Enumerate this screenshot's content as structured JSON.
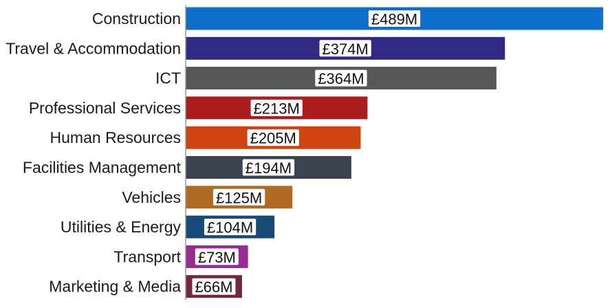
{
  "chart_data": {
    "type": "bar",
    "orientation": "horizontal",
    "categories": [
      "Construction",
      "Travel & Accommodation",
      "ICT",
      "Professional Services",
      "Human Resources",
      "Facilities Management",
      "Vehicles",
      "Utilities & Energy",
      "Transport",
      "Marketing & Media"
    ],
    "values": [
      489,
      374,
      364,
      213,
      205,
      194,
      125,
      104,
      73,
      66
    ],
    "value_labels": [
      "£489M",
      "£374M",
      "£364M",
      "£213M",
      "£205M",
      "£194M",
      "£125M",
      "£104M",
      "£73M",
      "£66M"
    ],
    "colors": [
      "#0b6fcb",
      "#2f2a82",
      "#575757",
      "#ad1c1c",
      "#cf4411",
      "#3a4350",
      "#b06a21",
      "#174a76",
      "#9b2a8f",
      "#74263e"
    ],
    "title": "",
    "xlabel": "",
    "ylabel": "",
    "xlim": [
      0,
      489
    ],
    "grid": false,
    "legend": "none"
  }
}
